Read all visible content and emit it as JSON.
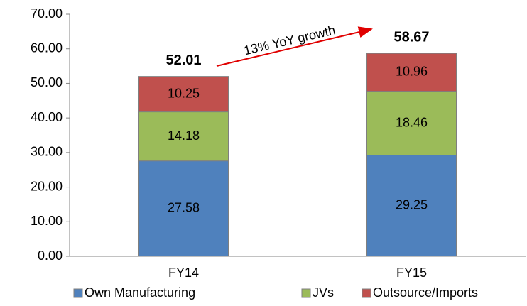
{
  "chart_data": {
    "type": "stacked_bar",
    "categories": [
      "FY14",
      "FY15"
    ],
    "series": [
      {
        "name": "Own Manufacturing",
        "color": "#4f81bd",
        "values": [
          27.58,
          29.25
        ]
      },
      {
        "name": "JVs",
        "color": "#9bbb59",
        "values": [
          14.18,
          18.46
        ]
      },
      {
        "name": "Outsource/Imports",
        "color": "#c0504d",
        "values": [
          10.25,
          10.96
        ]
      }
    ],
    "totals": [
      52.01,
      58.67
    ],
    "annotation": "13% YoY growth",
    "ylim": [
      0,
      70
    ],
    "yticks": [
      {
        "value": 0,
        "label": "0.00"
      },
      {
        "value": 10,
        "label": "10.00"
      },
      {
        "value": 20,
        "label": "20.00"
      },
      {
        "value": 30,
        "label": "30.00"
      },
      {
        "value": 40,
        "label": "40.00"
      },
      {
        "value": 50,
        "label": "50.00"
      },
      {
        "value": 60,
        "label": "60.00"
      },
      {
        "value": 70,
        "label": "70.00"
      }
    ],
    "grid": false,
    "legend": "bottom"
  }
}
